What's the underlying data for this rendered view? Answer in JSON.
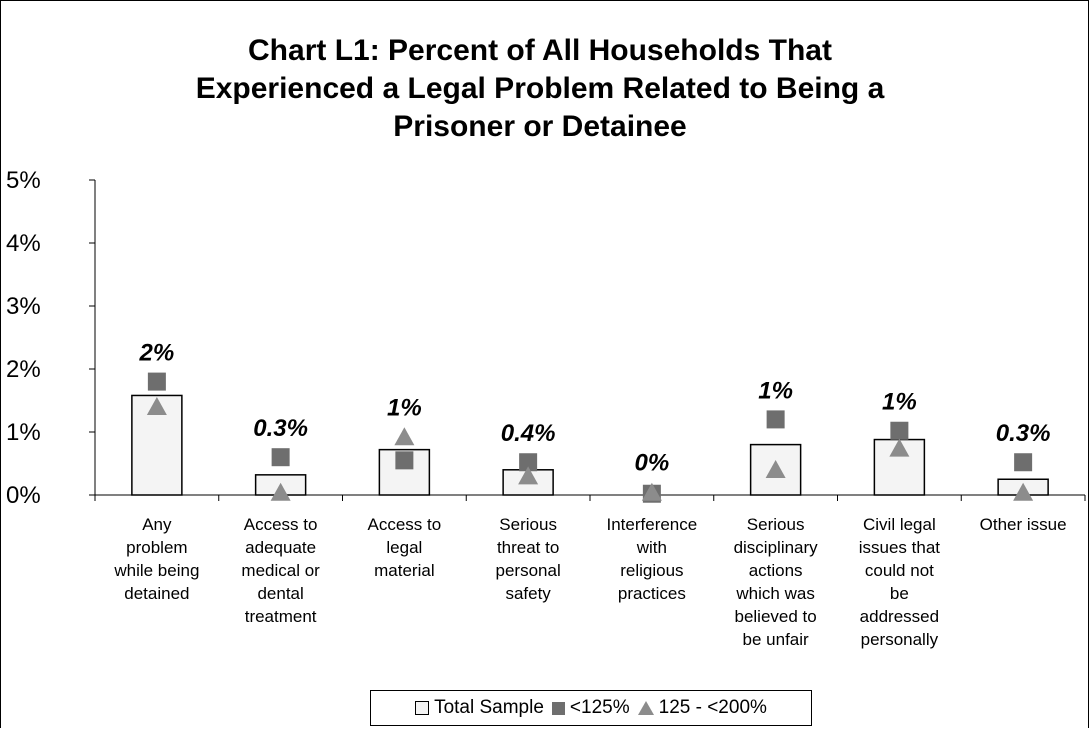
{
  "chart_data": {
    "type": "bar",
    "title_lines": [
      "Chart L1:  Percent of All Households That",
      "Experienced a Legal Problem Related to Being a",
      "Prisoner or Detainee"
    ],
    "y_ticks": [
      "0%",
      "1%",
      "2%",
      "3%",
      "4%",
      "5%"
    ],
    "ylim": [
      0,
      5
    ],
    "categories": [
      [
        "Any",
        "problem",
        "while being",
        "detained"
      ],
      [
        "Access to",
        "adequate",
        "medical or",
        "dental",
        "treatment"
      ],
      [
        "Access to",
        "legal",
        "material"
      ],
      [
        "Serious",
        "threat to",
        "personal",
        "safety"
      ],
      [
        "Interference",
        "with",
        "religious",
        "practices"
      ],
      [
        "Serious",
        "disciplinary",
        "actions",
        "which was",
        "believed to",
        "be unfair"
      ],
      [
        "Civil legal",
        "issues that",
        "could not",
        "be",
        "addressed",
        "personally"
      ],
      [
        "Other issue"
      ]
    ],
    "series": [
      {
        "name": "Total Sample",
        "marker": "bar",
        "color": "#f4f4f4",
        "values": [
          1.58,
          0.32,
          0.72,
          0.4,
          0.0,
          0.8,
          0.88,
          0.25
        ]
      },
      {
        "name": "<125%",
        "marker": "square",
        "color": "#6e6e6e",
        "values": [
          1.8,
          0.6,
          0.55,
          0.52,
          0.02,
          1.2,
          1.02,
          0.52
        ]
      },
      {
        "name": "125 - <200%",
        "marker": "triangle",
        "color": "#8c8c8c",
        "values": [
          1.38,
          0.02,
          0.9,
          0.28,
          0.02,
          0.38,
          0.72,
          0.02
        ]
      }
    ],
    "data_labels": [
      "2%",
      "0.3%",
      "1%",
      "0.4%",
      "0%",
      "1%",
      "1%",
      "0.3%"
    ],
    "legend_position": "bottom",
    "grid": false
  }
}
